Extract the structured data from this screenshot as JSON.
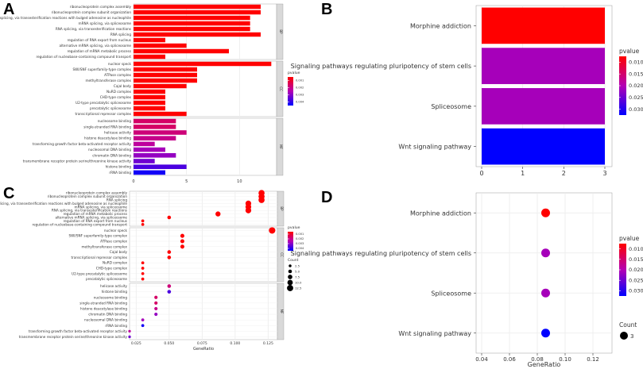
{
  "figure": {
    "panel_letters": [
      "A",
      "B",
      "C",
      "D"
    ]
  },
  "chart_data": [
    {
      "panel": "A",
      "type": "bar",
      "orientation": "horizontal",
      "title": "",
      "xlabel": "",
      "ylabel": "",
      "xlim": [
        0,
        13.5
      ],
      "x_ticks": [
        0,
        5,
        10
      ],
      "facets": [
        {
          "strip_label": "BP",
          "categories": [
            "ribonucleoprotein complex assembly",
            "ribonucleoprotein complex subunit organization",
            "RNA splicing, via transesterification reactions with bulged adenosine as nucleophile",
            "mRNA splicing, via spliceosome",
            "RNA splicing, via transesterification reactions",
            "RNA splicing",
            "regulation of RNA export from nucleus",
            "alternative mRNA splicing, via spliceosome",
            "regulation of mRNA metabolic process",
            "regulation of nucleobase-containing compound transport"
          ],
          "values": [
            12,
            12,
            11,
            11,
            11,
            12,
            3,
            5,
            9,
            3
          ],
          "pvalues": [
            0.0001,
            0.0001,
            0.0001,
            0.0001,
            0.0001,
            0.0001,
            0.0001,
            0.0001,
            0.0001,
            0.0001
          ]
        },
        {
          "strip_label": "CC",
          "categories": [
            "nuclear speck",
            "SWI/SNF superfamily-type complex",
            "ATPase complex",
            "methyltransferase complex",
            "Cajal body",
            "NuRD complex",
            "CHD-type complex",
            "U2-type precatalytic spliceosome",
            "precatalytic spliceosome",
            "transcriptional repressor complex"
          ],
          "values": [
            13,
            6,
            6,
            6,
            5,
            3,
            3,
            3,
            3,
            5
          ],
          "pvalues": [
            0.0001,
            0.0001,
            0.0001,
            0.0001,
            0.0001,
            0.0001,
            0.0001,
            0.0001,
            0.0001,
            0.0001
          ]
        },
        {
          "strip_label": "MF",
          "categories": [
            "nucleosome binding",
            "single-stranded RNA binding",
            "helicase activity",
            "histone deacetylase binding",
            "transforming growth factor beta-activated receptor activity",
            "nucleosomal DNA binding",
            "chromatin DNA binding",
            "transmembrane receptor protein serine/threonine kinase activity",
            "histone binding",
            "rRNA binding"
          ],
          "values": [
            4,
            4,
            5,
            4,
            2,
            3,
            4,
            2,
            5,
            3
          ],
          "pvalues": [
            0.0012,
            0.0012,
            0.0014,
            0.0016,
            0.0018,
            0.0022,
            0.0024,
            0.0028,
            0.0032,
            0.0038
          ]
        }
      ],
      "legend": {
        "title": "pvalue",
        "position": "right",
        "ticks": [
          "0.001",
          "0.002",
          "0.003",
          "0.004"
        ],
        "colors": [
          "#ff0000",
          "#0000ff"
        ]
      }
    },
    {
      "panel": "B",
      "type": "bar",
      "orientation": "horizontal",
      "title": "",
      "xlabel": "",
      "ylabel": "",
      "xlim": [
        0,
        3
      ],
      "x_ticks": [
        "0",
        "1",
        "2",
        "3"
      ],
      "categories": [
        "Morphine addiction",
        "Signaling pathways regulating pluripotency of stem cells",
        "Spliceosome",
        "Wnt signaling pathway"
      ],
      "values": [
        3,
        3,
        3,
        3
      ],
      "pvalues": [
        0.006,
        0.02,
        0.02,
        0.032
      ],
      "legend": {
        "title": "pvalue",
        "position": "right",
        "ticks": [
          "0.010",
          "0.015",
          "0.020",
          "0.025",
          "0.030"
        ],
        "colors": [
          "#ff0000",
          "#0000ff"
        ]
      }
    },
    {
      "panel": "C",
      "type": "scatter",
      "subtype": "dotplot",
      "title": "",
      "xlabel": "GeneRatio",
      "ylabel": "",
      "xlim": [
        0.02,
        0.132
      ],
      "x_ticks": [
        "0.025",
        "0.050",
        "0.075",
        "0.100",
        "0.125"
      ],
      "facets": [
        {
          "strip_label": "BP",
          "categories": [
            "ribonucleoprotein complex assembly",
            "ribonucleoprotein complex subunit organization",
            "RNA splicing",
            "RNA splicing, via transesterification reactions with bulged adenosine as nucleophile",
            "mRNA splicing, via spliceosome",
            "RNA splicing, via transesterification reactions",
            "regulation of mRNA metabolic process",
            "alternative mRNA splicing, via spliceosome",
            "regulation of RNA export from nucleus",
            "regulation of nucleobase-containing compound transport"
          ],
          "x": [
            0.12,
            0.12,
            0.12,
            0.11,
            0.11,
            0.11,
            0.087,
            0.05,
            0.03,
            0.03
          ],
          "count": [
            12,
            12,
            12,
            11,
            11,
            11,
            9,
            5,
            3,
            3
          ],
          "pvalues": [
            0.0001,
            0.0001,
            0.0001,
            0.0001,
            0.0001,
            0.0001,
            0.0001,
            0.0001,
            0.0001,
            0.0001
          ]
        },
        {
          "strip_label": "CC",
          "categories": [
            "nuclear speck",
            "SWI/SNF superfamily-type complex",
            "ATPase complex",
            "methyltransferase complex",
            "Cajal body",
            "transcriptional repressor complex",
            "NuRD complex",
            "CHD-type complex",
            "U2-type precatalytic spliceosome",
            "precatalytic spliceosome"
          ],
          "x": [
            0.128,
            0.06,
            0.06,
            0.06,
            0.05,
            0.05,
            0.03,
            0.03,
            0.03,
            0.03
          ],
          "count": [
            13,
            6,
            6,
            6,
            5,
            5,
            3,
            3,
            3,
            3
          ],
          "pvalues": [
            0.0001,
            0.0001,
            0.0001,
            0.0001,
            0.0001,
            0.0001,
            0.0001,
            0.0001,
            0.0001,
            0.0001
          ]
        },
        {
          "strip_label": "MF",
          "categories": [
            "helicase activity",
            "histone binding",
            "nucleosome binding",
            "single-stranded RNA binding",
            "histone deacetylase binding",
            "chromatin DNA binding",
            "nucleosomal DNA binding",
            "rRNA binding",
            "transforming growth factor beta-activated receptor activity",
            "transmembrane receptor protein serine/threonine kinase activity"
          ],
          "x": [
            0.05,
            0.05,
            0.04,
            0.04,
            0.04,
            0.04,
            0.03,
            0.03,
            0.02,
            0.02
          ],
          "count": [
            5,
            5,
            4,
            4,
            4,
            4,
            3,
            3,
            2,
            2
          ],
          "pvalues": [
            0.0014,
            0.0032,
            0.0012,
            0.0012,
            0.0016,
            0.0024,
            0.0022,
            0.0038,
            0.0018,
            0.0028
          ]
        }
      ],
      "legend": {
        "title": "pvalue",
        "position": "right",
        "ticks": [
          "0.001",
          "0.002",
          "0.003",
          "0.004"
        ],
        "colors": [
          "#ff0000",
          "#0000ff"
        ],
        "size_title": "Count",
        "size_values": [
          "2.5",
          "5.0",
          "7.5",
          "10.0",
          "12.5"
        ]
      }
    },
    {
      "panel": "D",
      "type": "scatter",
      "subtype": "dotplot",
      "title": "",
      "xlabel": "GeneRatio",
      "ylabel": "",
      "xlim": [
        0.035,
        0.135
      ],
      "x_ticks": [
        "0.04",
        "0.06",
        "0.08",
        "0.10",
        "0.12"
      ],
      "categories": [
        "Morphine addiction",
        "Signaling pathways regulating pluripotency of stem cells",
        "Spliceosome",
        "Wnt signaling pathway"
      ],
      "x": [
        0.086,
        0.086,
        0.086,
        0.086
      ],
      "count": [
        3,
        3,
        3,
        3
      ],
      "pvalues": [
        0.006,
        0.02,
        0.02,
        0.032
      ],
      "legend": {
        "title": "pvalue",
        "position": "right",
        "ticks": [
          "0.010",
          "0.015",
          "0.020",
          "0.025",
          "0.030"
        ],
        "colors": [
          "#ff0000",
          "#0000ff"
        ],
        "size_title": "Count",
        "size_values": [
          "3"
        ]
      }
    }
  ]
}
